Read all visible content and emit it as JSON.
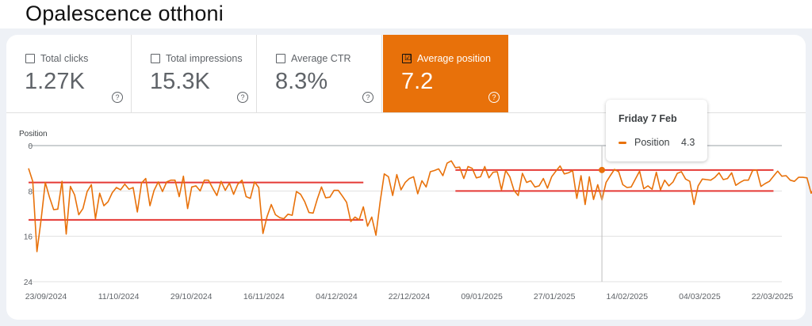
{
  "page": {
    "title": "Opalescence otthoni"
  },
  "metrics": [
    {
      "label": "Total clicks",
      "value": "1.27K",
      "checked": false
    },
    {
      "label": "Total impressions",
      "value": "15.3K",
      "checked": false
    },
    {
      "label": "Average CTR",
      "value": "8.3%",
      "checked": false
    },
    {
      "label": "Average position",
      "value": "7.2",
      "checked": true
    }
  ],
  "colors": {
    "series": "#e8710a",
    "annotation": "#e53935",
    "active_card": "#e8710a",
    "grid": "#e0e0e0"
  },
  "tooltip": {
    "date": "Friday 7 Feb",
    "series": "Position",
    "value": "4.3",
    "check_mark": "☑",
    "help_mark": "?"
  },
  "chart_data": {
    "type": "line",
    "title": "",
    "ylabel": "Position",
    "xlabel": "",
    "ylim": [
      0,
      24
    ],
    "y_reversed": true,
    "yticks": [
      "0",
      "8",
      "16",
      "24"
    ],
    "grid": true,
    "x_start": "2024-09-23",
    "x_end": "2025-03-22",
    "xtick_labels": [
      "23/09/2024",
      "11/10/2024",
      "29/10/2024",
      "16/11/2024",
      "04/12/2024",
      "22/12/2024",
      "09/01/2025",
      "27/01/2025",
      "14/02/2025",
      "04/03/2025",
      "22/03/2025"
    ],
    "series": [
      {
        "values": [
          4.0,
          6.3,
          18.7,
          13.1,
          6.5,
          9.1,
          11.3,
          11.2,
          6.3,
          15.6,
          7.2,
          8.7,
          12.2,
          11.1,
          8.1,
          6.9,
          12.9,
          8.4,
          10.6,
          9.9,
          8.3,
          7.4,
          7.8,
          6.8,
          7.7,
          7.4,
          11.7,
          6.6,
          5.8,
          10.6,
          7.9,
          6.4,
          8.1,
          6.4,
          6.1,
          6.1,
          9.0,
          5.4,
          11.1,
          7.3,
          7.1,
          8.0,
          6.1,
          6.1,
          7.5,
          8.8,
          6.3,
          7.9,
          6.6,
          8.6,
          6.8,
          6.1,
          9.0,
          9.3,
          6.4,
          7.4,
          15.5,
          12.5,
          10.4,
          12.2,
          12.7,
          12.9,
          12.1,
          12.3,
          8.1,
          8.6,
          9.9,
          11.8,
          11.9,
          9.4,
          7.3,
          9.2,
          9.1,
          7.9,
          7.9,
          8.9,
          10.0,
          13.4,
          12.6,
          13.1,
          10.8,
          14.2,
          12.6,
          15.8,
          10.0,
          5.0,
          5.5,
          8.8,
          5.1,
          7.8,
          6.5,
          5.8,
          5.5,
          8.5,
          6.2,
          7.3,
          4.6,
          4.4,
          4.1,
          5.3,
          3.1,
          2.7,
          3.9,
          3.8,
          5.8,
          3.7,
          4.0,
          5.7,
          5.5,
          3.7,
          5.7,
          4.7,
          4.6,
          7.8,
          4.4,
          5.5,
          7.9,
          8.8,
          4.9,
          6.5,
          6.2,
          7.3,
          7.1,
          5.8,
          7.5,
          5.5,
          4.5,
          3.6,
          5.0,
          4.8,
          4.4,
          9.3,
          5.3,
          10.4,
          5.5,
          9.5,
          6.9,
          9.6,
          6.5,
          5.3,
          4.2,
          4.6,
          6.9,
          7.4,
          7.3,
          5.9,
          4.5,
          7.6,
          7.1,
          7.7,
          4.7,
          7.8,
          6.1,
          7.1,
          6.4,
          4.9,
          4.6,
          5.9,
          6.3,
          10.4,
          7.1,
          5.9,
          6.0,
          6.1,
          5.6,
          4.8,
          6.0,
          5.8,
          4.8,
          7.0,
          6.5,
          6.1,
          6.1,
          4.4,
          4.3,
          7.2,
          6.7,
          6.3,
          5.4,
          4.5,
          5.4,
          5.3,
          6.1,
          6.3,
          5.6,
          5.6,
          5.7,
          8.4,
          7.1,
          6.6,
          5.6,
          4.7,
          5.1,
          4.8,
          4.9,
          5.4,
          5.4,
          4.5,
          4.9,
          5.0,
          5.6,
          5.2,
          6.2,
          9.3,
          5.5,
          6.9,
          6.5,
          5.5,
          5.8,
          6.1,
          6.6,
          4.0,
          8.9,
          5.3,
          5.1,
          4.8,
          6.3,
          4.9,
          4.4,
          4.8,
          5.9,
          7.9,
          5.5,
          5.5,
          8.8,
          8.0,
          6.5,
          9.1,
          7.3
        ]
      }
    ],
    "annotation_lines": [
      {
        "x0": "2024-09-23",
        "x1": "2024-12-12",
        "y": 6.5
      },
      {
        "x0": "2024-09-23",
        "x1": "2024-12-12",
        "y": 13.1
      },
      {
        "x0": "2025-01-03",
        "x1": "2025-03-20",
        "y": 4.3
      },
      {
        "x0": "2025-01-03",
        "x1": "2025-03-20",
        "y": 8.0
      }
    ],
    "highlight": {
      "date": "2025-02-07",
      "value": 4.3,
      "label": "Friday 7 Feb"
    }
  }
}
